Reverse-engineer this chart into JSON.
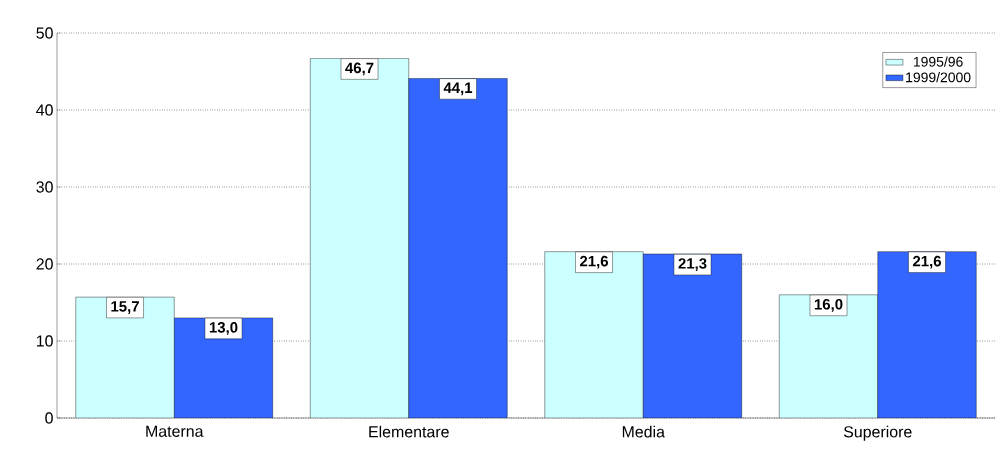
{
  "chart_data": {
    "type": "bar",
    "categories": [
      "Materna",
      "Elementare",
      "Media",
      "Superiore"
    ],
    "series": [
      {
        "name": "1995/96",
        "color": "#ccffff",
        "values": [
          15.7,
          46.7,
          21.6,
          16.0
        ],
        "value_labels": [
          "15,7",
          "46,7",
          "21,6",
          "16,0"
        ]
      },
      {
        "name": "1999/2000",
        "color": "#3366ff",
        "values": [
          13.0,
          44.1,
          21.3,
          21.6
        ],
        "value_labels": [
          "13,0",
          "44,1",
          "21,3",
          "21,6"
        ]
      }
    ],
    "ylim": [
      0,
      50
    ],
    "yticks": [
      0,
      10,
      20,
      30,
      40,
      50
    ],
    "grid": "y",
    "legend": "top right"
  }
}
